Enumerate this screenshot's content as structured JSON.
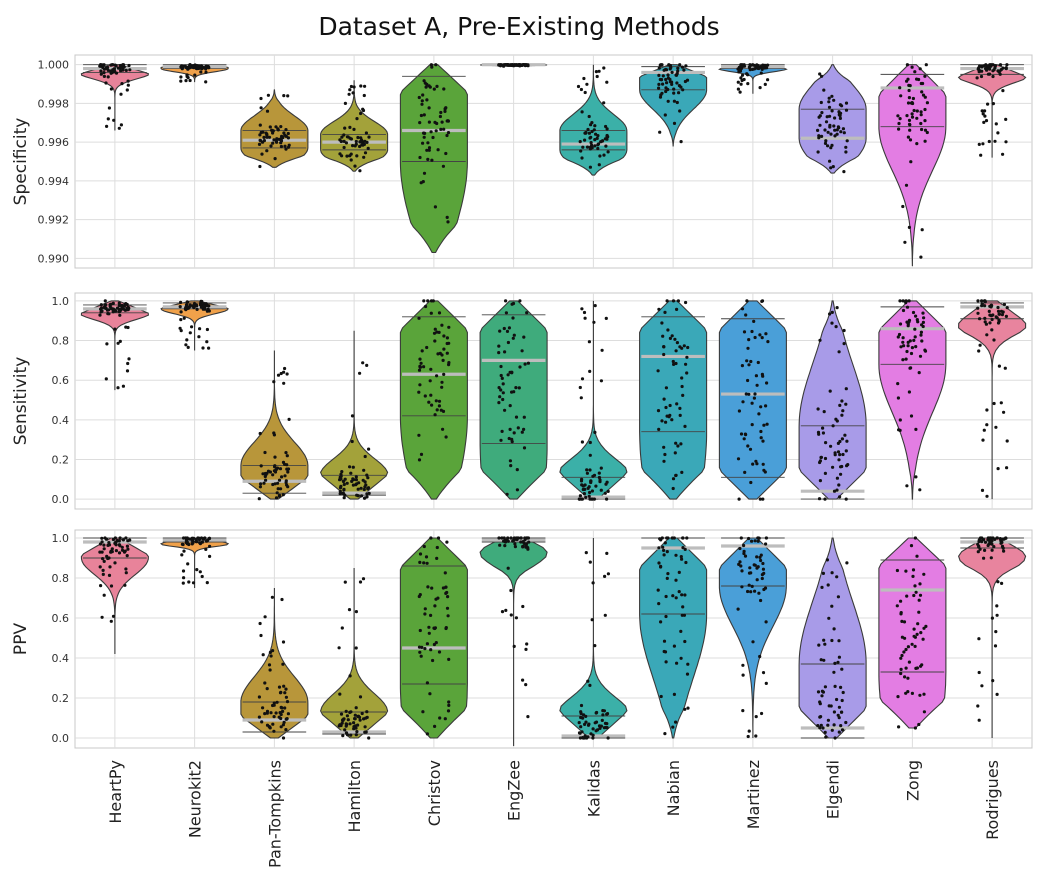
{
  "title": "Dataset A, Pre-Existing Methods",
  "chart_data": {
    "type": "violin",
    "title": "Dataset A, Pre-Existing Methods",
    "categories": [
      "HeartPy",
      "Neurokit2",
      "Pan-Tompkins",
      "Hamilton",
      "Christov",
      "EngZee",
      "Kalidas",
      "Nabian",
      "Martinez",
      "Elgendi",
      "Zong",
      "Rodrigues"
    ],
    "colors": [
      "#e8839a",
      "#f0a14a",
      "#b8963a",
      "#a3a23a",
      "#5aa43a",
      "#3fab7c",
      "#3bb0a8",
      "#3aa8b8",
      "#4a9fd8",
      "#a89be8",
      "#e37de3",
      "#e8849e"
    ],
    "grid": true,
    "panels": [
      {
        "ylabel": "Specificity",
        "ylim": [
          0.9895,
          1.0005
        ],
        "yticks": [
          "0.990",
          "0.992",
          "0.994",
          "0.996",
          "0.998",
          "1.000"
        ],
        "means": [
          0.9998,
          0.9999,
          0.9961,
          0.996,
          0.9966,
          1.0,
          0.9959,
          0.9996,
          0.9999,
          0.9962,
          0.9988,
          0.9998
        ],
        "q1": [
          0.9996,
          0.9998,
          0.9957,
          0.9956,
          0.995,
          1.0,
          0.9956,
          0.9987,
          0.9998,
          0.9962,
          0.9968,
          0.9995
        ],
        "q3": [
          1.0,
          1.0,
          0.9966,
          0.9964,
          0.9994,
          1.0,
          0.9966,
          0.9999,
          1.0,
          0.9977,
          0.9995,
          1.0
        ],
        "mins": [
          0.9966,
          0.9991,
          0.9947,
          0.9945,
          0.9903,
          0.9999,
          0.9943,
          0.9958,
          0.9985,
          0.9944,
          0.9896,
          0.9952
        ],
        "maxs": [
          1.0,
          1.0,
          0.9987,
          0.9992,
          1.0,
          1.0,
          1.0,
          1.0,
          1.0,
          1.0,
          1.0,
          1.0
        ]
      },
      {
        "ylabel": "Sensitivity",
        "ylim": [
          -0.05,
          1.04
        ],
        "yticks": [
          "0.0",
          "0.2",
          "0.4",
          "0.6",
          "0.8",
          "1.0"
        ],
        "means": [
          0.96,
          0.97,
          0.09,
          0.03,
          0.63,
          0.7,
          0.01,
          0.72,
          0.53,
          0.04,
          0.86,
          0.97
        ],
        "q1": [
          0.94,
          0.96,
          0.03,
          0.02,
          0.42,
          0.28,
          0.0,
          0.34,
          0.11,
          0.0,
          0.68,
          0.91
        ],
        "q3": [
          0.98,
          0.99,
          0.17,
          0.12,
          0.92,
          0.93,
          0.11,
          0.92,
          0.91,
          0.37,
          0.97,
          0.99
        ],
        "mins": [
          0.55,
          0.75,
          0.0,
          0.0,
          0.0,
          0.0,
          0.0,
          0.0,
          0.0,
          0.0,
          0.0,
          0.0
        ],
        "maxs": [
          1.0,
          1.0,
          0.75,
          0.85,
          1.0,
          1.0,
          1.0,
          1.0,
          1.0,
          1.0,
          1.0,
          1.0
        ]
      },
      {
        "ylabel": "PPV",
        "ylim": [
          -0.05,
          1.04
        ],
        "yticks": [
          "0.0",
          "0.2",
          "0.4",
          "0.6",
          "0.8",
          "1.0"
        ],
        "means": [
          0.98,
          0.99,
          0.09,
          0.03,
          0.45,
          0.99,
          0.01,
          0.95,
          0.96,
          0.05,
          0.74,
          0.98
        ],
        "q1": [
          0.9,
          0.98,
          0.03,
          0.02,
          0.27,
          0.98,
          0.0,
          0.62,
          0.76,
          0.0,
          0.33,
          0.95
        ],
        "q3": [
          1.0,
          1.0,
          0.18,
          0.13,
          0.86,
          1.0,
          0.11,
          1.0,
          1.0,
          0.37,
          0.89,
          1.0
        ],
        "mins": [
          0.42,
          0.75,
          0.0,
          0.0,
          0.0,
          -0.04,
          0.0,
          0.0,
          0.0,
          0.0,
          0.05,
          0.0
        ],
        "maxs": [
          1.0,
          1.0,
          0.75,
          0.85,
          1.0,
          1.0,
          1.0,
          1.0,
          1.0,
          1.0,
          1.0,
          1.0
        ]
      }
    ]
  }
}
